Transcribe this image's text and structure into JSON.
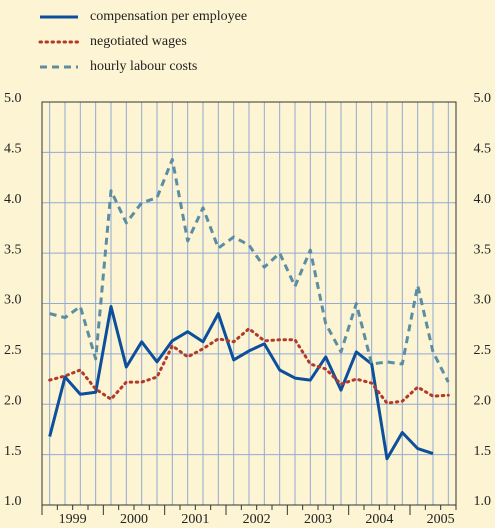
{
  "chart_data": {
    "type": "line",
    "year_labels": [
      "1999",
      "2000",
      "2001",
      "2002",
      "2003",
      "2004",
      "2005"
    ],
    "series": [
      {
        "name": "compensation per employee",
        "color": "#0d4f9c",
        "style": "solid",
        "values": [
          1.68,
          2.27,
          2.1,
          2.12,
          2.97,
          2.37,
          2.62,
          2.42,
          2.63,
          2.72,
          2.62,
          2.9,
          2.44,
          2.53,
          2.6,
          2.34,
          2.26,
          2.24,
          2.47,
          2.14,
          2.52,
          2.4,
          1.46,
          1.72,
          1.56,
          1.51,
          null
        ]
      },
      {
        "name": "negotiated wages",
        "color": "#b23a2a",
        "style": "dotted",
        "values": [
          2.24,
          2.28,
          2.34,
          2.15,
          2.05,
          2.22,
          2.22,
          2.27,
          2.58,
          2.47,
          2.55,
          2.65,
          2.62,
          2.75,
          2.63,
          2.64,
          2.64,
          2.4,
          2.35,
          2.2,
          2.25,
          2.21,
          2.01,
          2.03,
          2.17,
          2.08,
          2.09
        ]
      },
      {
        "name": "hourly labour costs",
        "color": "#5b8ea3",
        "style": "dashed",
        "values": [
          2.9,
          2.86,
          2.97,
          2.45,
          4.12,
          3.8,
          4.0,
          4.05,
          4.43,
          3.62,
          3.95,
          3.55,
          3.66,
          3.58,
          3.36,
          3.5,
          3.17,
          3.53,
          2.8,
          2.52,
          3.0,
          2.4,
          2.42,
          2.4,
          3.18,
          2.52,
          2.22
        ]
      }
    ],
    "ylim": [
      1,
      5
    ],
    "yticks": [
      {
        "value": 1,
        "label": "1.0"
      },
      {
        "value": 1.5,
        "label": "1.5"
      },
      {
        "value": 2,
        "label": "2.0"
      },
      {
        "value": 2.5,
        "label": "2.5"
      },
      {
        "value": 3,
        "label": "3.0"
      },
      {
        "value": 3.5,
        "label": "3.5"
      },
      {
        "value": 4,
        "label": "4.0"
      },
      {
        "value": 4.5,
        "label": "4.5"
      },
      {
        "value": 5,
        "label": "5.0"
      }
    ],
    "grid": true
  }
}
